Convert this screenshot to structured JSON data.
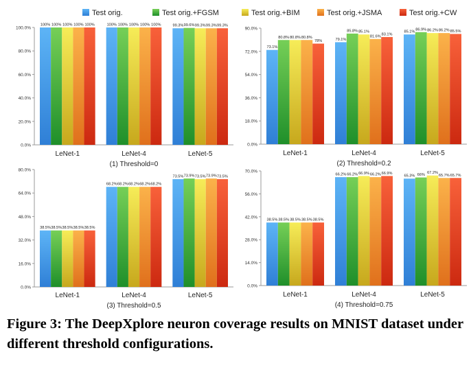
{
  "legend": [
    "Test orig.",
    "Test orig.+FGSM",
    "Test orig.+BIM",
    "Test orig.+JSMA",
    "Test orig.+CW"
  ],
  "colors": [
    [
      "#5db4f6",
      "#2f7fd6"
    ],
    [
      "#76cf57",
      "#1f8f2a"
    ],
    [
      "#f6ec58",
      "#c7a81d"
    ],
    [
      "#fbb24a",
      "#e0701c"
    ],
    [
      "#f8613a",
      "#cc2910"
    ]
  ],
  "caption": "Figure 3: The DeepXplore neuron coverage results on MNIST dataset under different threshold configurations.",
  "chart_data": [
    {
      "type": "bar",
      "title": "(1) Threshold=0",
      "categories": [
        "LeNet-1",
        "LeNet-4",
        "LeNet-5"
      ],
      "ylim": [
        0,
        100
      ],
      "yticks": [
        "0.0%",
        "20.0%",
        "40.0%",
        "60.0%",
        "80.0%",
        "100.0%"
      ],
      "series": [
        {
          "name": "Test orig.",
          "values": [
            100,
            100,
            99.3
          ],
          "labels": [
            "100%",
            "100%",
            "99.3%"
          ]
        },
        {
          "name": "Test orig.+FGSM",
          "values": [
            100,
            100,
            99.6
          ],
          "labels": [
            "100%",
            "100%",
            "99.6%"
          ]
        },
        {
          "name": "Test orig.+BIM",
          "values": [
            100,
            100,
            99.3
          ],
          "labels": [
            "100%",
            "100%",
            "99.3%"
          ]
        },
        {
          "name": "Test orig.+JSMA",
          "values": [
            100,
            100,
            99.3
          ],
          "labels": [
            "100%",
            "100%",
            "99.3%"
          ]
        },
        {
          "name": "Test orig.+CW",
          "values": [
            100,
            100,
            99.3
          ],
          "labels": [
            "100%",
            "100%",
            "99.3%"
          ]
        }
      ]
    },
    {
      "type": "bar",
      "title": "(2) Threshold=0.2",
      "categories": [
        "LeNet-1",
        "LeNet-4",
        "LeNet-5"
      ],
      "ylim": [
        0,
        90
      ],
      "yticks": [
        "0.0%",
        "18.0%",
        "36.0%",
        "54.0%",
        "72.0%",
        "90.0%"
      ],
      "series": [
        {
          "name": "Test orig.",
          "values": [
            73.1,
            79.1,
            85.1
          ],
          "labels": [
            "73.1%",
            "79.1%",
            "85.1%"
          ]
        },
        {
          "name": "Test orig.+FGSM",
          "values": [
            80.8,
            85.8,
            86.9
          ],
          "labels": [
            "80.8%",
            "85.8%",
            "86.9%"
          ]
        },
        {
          "name": "Test orig.+BIM",
          "values": [
            80.8,
            85.1,
            86.2
          ],
          "labels": [
            "80.8%",
            "85.1%",
            "86.2%"
          ]
        },
        {
          "name": "Test orig.+JSMA",
          "values": [
            80.8,
            81.6,
            86.2
          ],
          "labels": [
            "80.8%",
            "81.6%",
            "86.2%"
          ]
        },
        {
          "name": "Test orig.+CW",
          "values": [
            78,
            83.1,
            85.5
          ],
          "labels": [
            "78%",
            "83.1%",
            "85.5%"
          ]
        }
      ]
    },
    {
      "type": "bar",
      "title": "(3) Threshold=0.5",
      "categories": [
        "LeNet-1",
        "LeNet-4",
        "LeNet-5"
      ],
      "ylim": [
        0,
        80
      ],
      "yticks": [
        "0.0%",
        "16.0%",
        "32.0%",
        "48.0%",
        "64.0%",
        "80.0%"
      ],
      "series": [
        {
          "name": "Test orig.",
          "values": [
            38.5,
            68.2,
            73.5
          ],
          "labels": [
            "38.5%",
            "68.2%",
            "73.5%"
          ]
        },
        {
          "name": "Test orig.+FGSM",
          "values": [
            38.5,
            68.2,
            73.9
          ],
          "labels": [
            "38.5%",
            "68.2%",
            "73.9%"
          ]
        },
        {
          "name": "Test orig.+BIM",
          "values": [
            38.5,
            68.2,
            73.5
          ],
          "labels": [
            "38.5%",
            "68.2%",
            "73.5%"
          ]
        },
        {
          "name": "Test orig.+JSMA",
          "values": [
            38.5,
            68.2,
            73.9
          ],
          "labels": [
            "38.5%",
            "68.2%",
            "73.9%"
          ]
        },
        {
          "name": "Test orig.+CW",
          "values": [
            38.5,
            68.2,
            73.5
          ],
          "labels": [
            "38.5%",
            "68.2%",
            "73.5%"
          ]
        }
      ]
    },
    {
      "type": "bar",
      "title": "(4) Threshold=0.75",
      "categories": [
        "LeNet-1",
        "LeNet-4",
        "LeNet-5"
      ],
      "ylim": [
        0,
        70
      ],
      "yticks": [
        "0.0%",
        "14.0%",
        "28.0%",
        "42.0%",
        "56.0%",
        "70.0%"
      ],
      "series": [
        {
          "name": "Test orig.",
          "values": [
            38.5,
            66.2,
            65.3
          ],
          "labels": [
            "38.5%",
            "66.2%",
            "65.3%"
          ]
        },
        {
          "name": "Test orig.+FGSM",
          "values": [
            38.5,
            66.2,
            66
          ],
          "labels": [
            "38.5%",
            "66.2%",
            "66%"
          ]
        },
        {
          "name": "Test orig.+BIM",
          "values": [
            38.5,
            66.9,
            67.2
          ],
          "labels": [
            "38.5%",
            "66.9%",
            "67.2%"
          ]
        },
        {
          "name": "Test orig.+JSMA",
          "values": [
            38.5,
            66.2,
            65.7
          ],
          "labels": [
            "38.5%",
            "66.2%",
            "65.7%"
          ]
        },
        {
          "name": "Test orig.+CW",
          "values": [
            38.5,
            66.9,
            65.7
          ],
          "labels": [
            "38.5%",
            "66.9%",
            "65.7%"
          ]
        }
      ]
    }
  ]
}
